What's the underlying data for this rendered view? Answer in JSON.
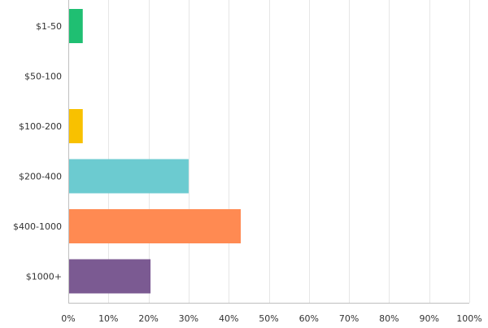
{
  "chart_data": {
    "type": "bar",
    "orientation": "horizontal",
    "categories": [
      "$1-50",
      "$50-100",
      "$100-200",
      "$200-400",
      "$400-1000",
      "$1000+"
    ],
    "values": [
      3.6,
      0,
      3.6,
      30,
      43,
      20.5
    ],
    "value_unit": "%",
    "colors": [
      "#1fbf72",
      "#a88ad4",
      "#f8c100",
      "#6ccbd0",
      "#ff8a52",
      "#7b5a92"
    ],
    "xlim": [
      0,
      100
    ],
    "ticks": [
      "0%",
      "10%",
      "20%",
      "30%",
      "40%",
      "50%",
      "60%",
      "70%",
      "80%",
      "90%",
      "100%"
    ],
    "grid": true,
    "title": "",
    "xlabel": "",
    "ylabel": ""
  }
}
